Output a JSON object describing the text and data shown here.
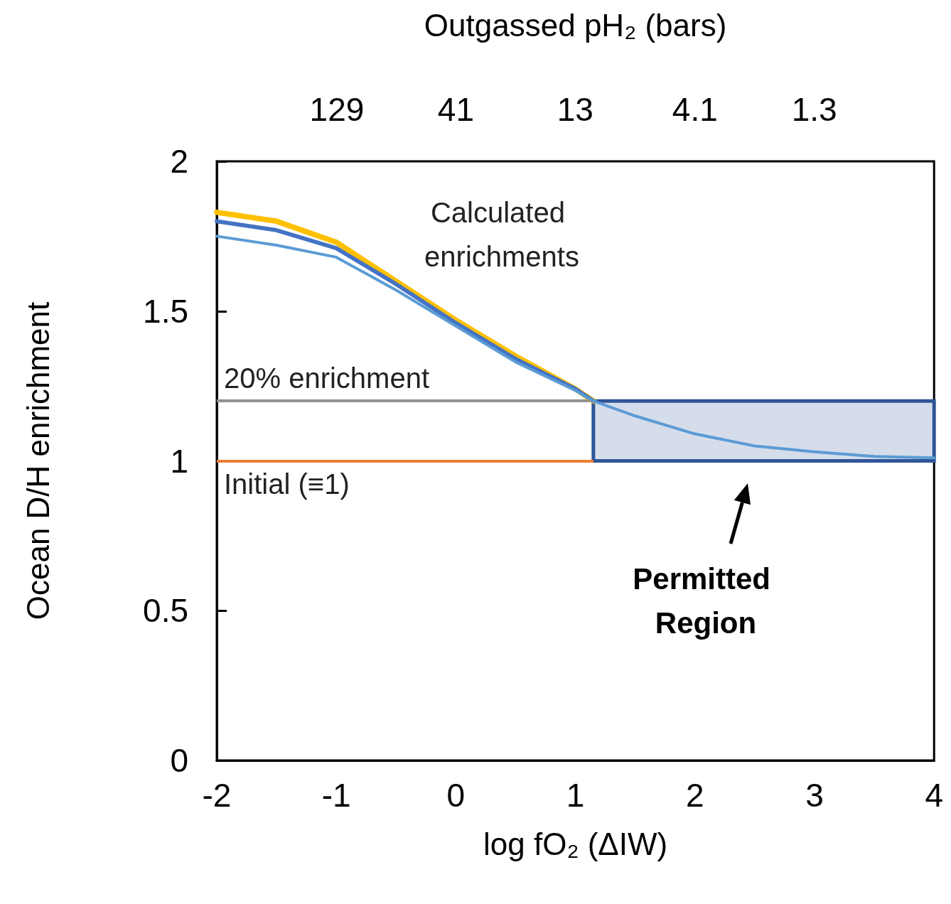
{
  "chart_data": {
    "type": "line",
    "xlabel": "log fO₂ (ΔIW)",
    "ylabel": "Ocean D/H enrichment",
    "x2label": "Outgassed pH₂ (bars)",
    "xlim": [
      -2,
      4
    ],
    "xticks": [
      -2,
      -1,
      0,
      1,
      2,
      3,
      4
    ],
    "ylim": [
      0,
      2
    ],
    "yticks": [
      0,
      0.5,
      1,
      1.5,
      2
    ],
    "x2lim": [
      410,
      0.41
    ],
    "x2ticks": [
      129,
      41,
      13,
      4.1,
      1.3
    ],
    "log": "x2",
    "x": [
      -2,
      -1.5,
      -1,
      -0.5,
      0,
      0.5,
      1,
      1.15,
      1.5,
      2,
      2.5,
      3,
      3.5,
      4
    ],
    "series": [
      {
        "color": "#ffc000",
        "values": [
          1.83,
          1.8,
          1.73,
          1.6,
          1.47,
          1.35,
          1.24,
          1.2,
          null,
          null,
          null,
          null,
          null,
          null
        ]
      },
      {
        "color": "#4472c4",
        "values": [
          1.8,
          1.77,
          1.71,
          1.59,
          1.46,
          1.34,
          1.24,
          1.2,
          null,
          null,
          null,
          null,
          null,
          null
        ]
      },
      {
        "color": "#5b9bd5",
        "values": [
          1.75,
          1.72,
          1.68,
          1.57,
          1.45,
          1.33,
          1.235,
          1.2,
          1.15,
          1.09,
          1.05,
          1.03,
          1.015,
          1.01
        ]
      }
    ],
    "ref_lines": [
      {
        "axis": "y",
        "value": 1.2,
        "label": "20% enrichment",
        "color": "#909090"
      },
      {
        "axis": "y",
        "value": 1,
        "label": "Initial (≡1)",
        "color": "#ed7d31"
      }
    ],
    "bands": [
      {
        "axis": "x",
        "from": 1.15,
        "to": 4,
        "color": "#2f5597"
      }
    ],
    "annotations": [
      "Calculated enrichments",
      "Permitted Region"
    ],
    "grid": false,
    "marker": "none",
    "line_style": "solid",
    "tick_labels": "xy"
  }
}
